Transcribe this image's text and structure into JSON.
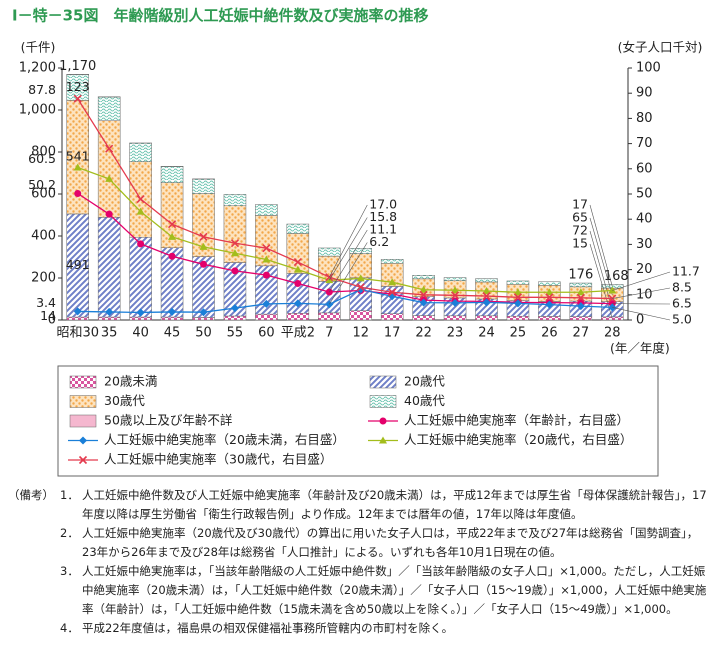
{
  "chart_data": {
    "type": "bar",
    "title": "Ⅰ－特－35図　年齢階級別人工妊娠中絶件数及び実施率の推移",
    "y_label": "(千件)",
    "y2_label": "(女子人口千対)",
    "x_label": "(年／年度)",
    "categories": [
      "昭和30",
      "35",
      "40",
      "45",
      "50",
      "55",
      "60",
      "平成2",
      "7",
      "12",
      "17",
      "22",
      "23",
      "24",
      "25",
      "26",
      "27",
      "28"
    ],
    "ylim": [
      0,
      1200
    ],
    "yticks": [
      0,
      200,
      400,
      600,
      800,
      {
        "value": 1000,
        "label": "1,000"
      },
      {
        "value": 1200,
        "label": "1,200"
      }
    ],
    "y2lim": [
      0,
      100
    ],
    "y2ticks": [
      0,
      10,
      20,
      30,
      40,
      50,
      60,
      70,
      80,
      90,
      100
    ],
    "grid": false,
    "stacked": true,
    "total_labels": [
      "1,170",
      null,
      null,
      null,
      null,
      null,
      null,
      null,
      null,
      null,
      null,
      null,
      null,
      null,
      null,
      null,
      "176",
      "168"
    ],
    "series": [
      {
        "name": "20歳未満",
        "type": "bar",
        "color": "#d9569f",
        "pattern": "check",
        "values": [
          14,
          14,
          14,
          14,
          12,
          19,
          28,
          32,
          34,
          44,
          30,
          21,
          20,
          20,
          18,
          17,
          16,
          15
        ],
        "value_labels": [
          "14",
          null,
          null,
          null,
          null,
          null,
          null,
          null,
          null,
          null,
          null,
          null,
          null,
          null,
          null,
          null,
          null,
          "15"
        ]
      },
      {
        "name": "20歳代",
        "type": "bar",
        "color": "#6f80c8",
        "pattern": "hatch",
        "values": [
          491,
          475,
          380,
          330,
          290,
          255,
          230,
          190,
          150,
          157,
          130,
          90,
          85,
          80,
          74,
          71,
          74,
          72
        ],
        "value_labels": [
          "491",
          null,
          null,
          null,
          null,
          null,
          null,
          null,
          null,
          null,
          null,
          null,
          null,
          null,
          null,
          null,
          null,
          "72"
        ]
      },
      {
        "name": "30歳代",
        "type": "bar",
        "color": "#f3a74a",
        "pattern": "dots",
        "values": [
          541,
          460,
          360,
          310,
          300,
          270,
          240,
          190,
          120,
          115,
          110,
          85,
          82,
          81,
          78,
          77,
          68,
          65
        ],
        "value_labels": [
          "541",
          null,
          null,
          null,
          null,
          null,
          null,
          null,
          null,
          null,
          null,
          null,
          null,
          null,
          null,
          null,
          null,
          "65"
        ]
      },
      {
        "name": "40歳代",
        "type": "bar",
        "color": "#6cc4b0",
        "pattern": "wave",
        "values": [
          123,
          113,
          88,
          77,
          69,
          54,
          52,
          45,
          39,
          25,
          19,
          17,
          15,
          16,
          16,
          17,
          18,
          17
        ],
        "value_labels": [
          "123",
          null,
          null,
          null,
          null,
          null,
          null,
          null,
          null,
          null,
          null,
          null,
          null,
          null,
          null,
          null,
          null,
          "17"
        ]
      },
      {
        "name": "50歳以上及び年齢不詳",
        "type": "bar",
        "color": "#f5b7cf",
        "pattern": "none",
        "values": [
          1,
          1,
          1,
          1,
          1,
          0,
          0,
          0,
          0,
          0,
          0,
          0,
          0,
          0,
          0,
          0,
          0,
          0
        ]
      },
      {
        "name": "人工妊娠中絶実施率（年齢計，右目盛）",
        "type": "line",
        "axis": "y2",
        "color": "#e4006b",
        "marker": "circle",
        "values": [
          50.2,
          42.0,
          30.2,
          25.3,
          22.1,
          19.5,
          17.8,
          14.5,
          11.1,
          11.7,
          10.3,
          7.9,
          7.5,
          7.4,
          7.0,
          6.9,
          6.8,
          6.5
        ],
        "value_labels": [
          "50.2",
          null,
          null,
          null,
          null,
          null,
          null,
          null,
          "11.1",
          null,
          null,
          null,
          null,
          null,
          null,
          null,
          null,
          "6.5"
        ]
      },
      {
        "name": "人工妊娠中絶実施率（20歳未満，右目盛）",
        "type": "line",
        "axis": "y2",
        "color": "#1a7fd8",
        "marker": "diamond",
        "values": [
          3.4,
          3.2,
          3.0,
          3.2,
          3.1,
          4.7,
          6.4,
          6.6,
          6.2,
          12.1,
          9.4,
          6.9,
          6.8,
          7.0,
          6.6,
          6.1,
          5.5,
          5.0
        ],
        "value_labels": [
          "3.4",
          null,
          null,
          null,
          null,
          null,
          null,
          null,
          "6.2",
          null,
          null,
          null,
          null,
          null,
          null,
          null,
          null,
          "5.0"
        ]
      },
      {
        "name": "人工妊娠中絶実施率（20歳代，右目盛）",
        "type": "line",
        "axis": "y2",
        "color": "#a3bd1c",
        "marker": "triangle",
        "values": [
          60.5,
          56.0,
          43.0,
          33.0,
          29.0,
          26.5,
          24.0,
          20.0,
          15.8,
          16.5,
          15.0,
          12.0,
          11.8,
          11.5,
          11.0,
          11.0,
          11.0,
          11.7
        ],
        "value_labels": [
          "60.5",
          null,
          null,
          null,
          null,
          null,
          null,
          null,
          "15.8",
          null,
          null,
          null,
          null,
          null,
          null,
          null,
          null,
          "11.7"
        ]
      },
      {
        "name": "人工妊娠中絶実施率（30歳代，右目盛）",
        "type": "line",
        "axis": "y2",
        "color": "#e43a4e",
        "marker": "x",
        "values": [
          87.8,
          68.0,
          48.0,
          38.0,
          33.0,
          30.5,
          28.5,
          23.0,
          17.0,
          13.0,
          11.0,
          10.0,
          9.8,
          9.5,
          9.0,
          9.0,
          8.8,
          8.5
        ],
        "value_labels": [
          "87.8",
          null,
          null,
          null,
          null,
          null,
          null,
          null,
          "17.0",
          null,
          null,
          null,
          null,
          null,
          null,
          null,
          null,
          "8.5"
        ]
      }
    ]
  },
  "notes": {
    "label": "（備考）",
    "items": [
      {
        "number": "1．",
        "text": "人工妊娠中絶件数及び人工妊娠中絶実施率（年齢計及び20歳未満）は，平成12年までは厚生省「母体保護統計報告」，17年度以降は厚生労働省「衛生行政報告例」より作成。12年までは暦年の値，17年以降は年度値。"
      },
      {
        "number": "2．",
        "text": "人工妊娠中絶実施率（20歳代及び30歳代）の算出に用いた女子人口は，平成22年まで及び27年は総務省「国勢調査」，23年から26年まで及び28年は総務省「人口推計」による。いずれも各年10月1日現在の値。"
      },
      {
        "number": "3．",
        "text": "人工妊娠中絶実施率は，「当該年齢階級の人工妊娠中絶件数」／「当該年齢階級の女子人口」×1,000。ただし，人工妊娠中絶実施率（20歳未満）は，「人工妊娠中絶件数（20歳未満）」／「女子人口（15～19歳）」×1,000，人工妊娠中絶実施率（年齢計）は，「人工妊娠中絶件数（15歳未満を含め50歳以上を除く。）」／「女子人口（15～49歳）」×1,000。"
      },
      {
        "number": "4．",
        "text": "平成22年度値は，福島県の相双保健福祉事務所管轄内の市町村を除く。"
      }
    ]
  }
}
